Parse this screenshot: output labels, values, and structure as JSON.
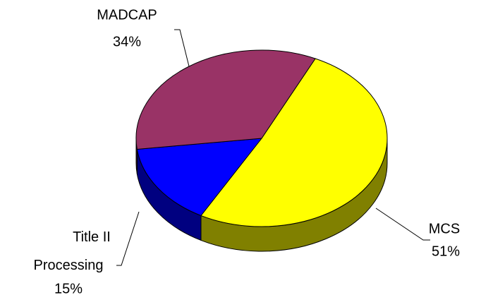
{
  "chart_data": {
    "type": "pie3d",
    "categories": [
      "MCS",
      "Title II Processing",
      "MADCAP"
    ],
    "values": [
      51,
      15,
      34
    ],
    "value_labels": [
      "51%",
      "15%",
      "34%"
    ],
    "colors": [
      "#ffff00",
      "#0000ff",
      "#993366"
    ],
    "side_colors": [
      "#808000",
      "#000080",
      "#4d1933"
    ]
  }
}
